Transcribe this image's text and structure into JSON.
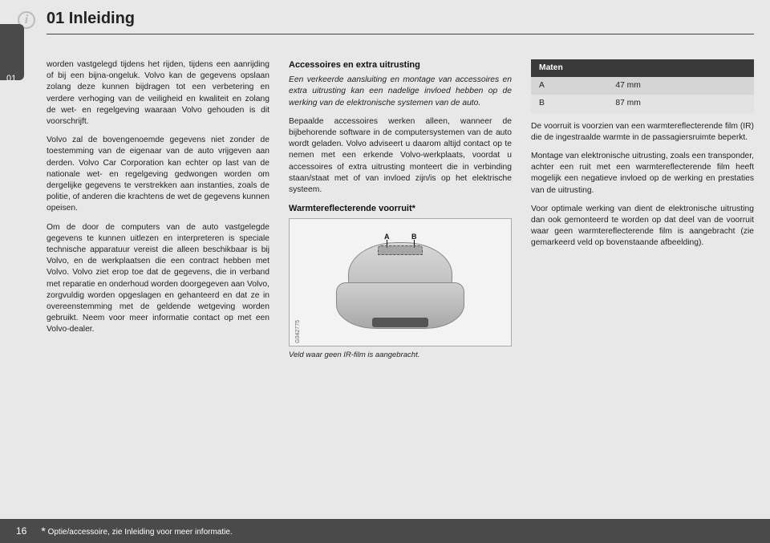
{
  "chapter": {
    "number": "01",
    "title": "01 Inleiding",
    "info_glyph": "i"
  },
  "col1": {
    "p1": "worden vastgelegd tijdens het rijden, tijdens een aanrijding of bij een bijna-ongeluk. Volvo kan de gegevens opslaan zolang deze kunnen bijdragen tot een verbetering en verdere verhoging van de veiligheid en kwaliteit en zolang de wet- en regelgeving waaraan Volvo gehouden is dit voorschrijft.",
    "p2": "Volvo zal de bovengenoemde gegevens niet zonder de toestemming van de eigenaar van de auto vrijgeven aan derden. Volvo Car Corporation kan echter op last van de nationale wet- en regelgeving gedwongen worden om dergelijke gegevens te verstrekken aan instanties, zoals de politie, of anderen die krachtens de wet de gegevens kunnen opeisen.",
    "p3": "Om de door de computers van de auto vastgelegde gegevens te kunnen uitlezen en interpreteren is speciale technische apparatuur vereist die alleen beschikbaar is bij Volvo, en de werkplaatsen die een contract hebben met Volvo. Volvo ziet erop toe dat de gegevens, die in verband met reparatie en onderhoud worden doorgegeven aan Volvo, zorgvuldig worden opgeslagen en gehanteerd en dat ze in overeenstemming met de geldende wetgeving worden gebruikt. Neem voor meer informatie contact op met een Volvo-dealer."
  },
  "col2": {
    "h1": "Accessoires en extra uitrusting",
    "p1": "Een verkeerde aansluiting en montage van accessoires en extra uitrusting kan een nadelige invloed hebben op de werking van de elektronische systemen van de auto.",
    "p2": "Bepaalde accessoires werken alleen, wanneer de bijbehorende software in de computersystemen van de auto wordt geladen. Volvo adviseert u daarom altijd contact op te nemen met een erkende Volvo-werkplaats, voordat u accessoires of extra uitrusting monteert die in verbinding staan/staat met of van invloed zijn/is op het elektrische systeem.",
    "h2": "Warmtereflecterende voorruit*",
    "figure": {
      "label_a": "A",
      "label_b": "B",
      "code": "G042775"
    },
    "caption": "Veld waar geen IR-film is aangebracht."
  },
  "col3": {
    "table": {
      "header": "Maten",
      "rows": [
        {
          "k": "A",
          "v": "47 mm"
        },
        {
          "k": "B",
          "v": "87 mm"
        }
      ]
    },
    "p1": "De voorruit is voorzien van een warmtereflecterende film (IR) die de ingestraalde warmte in de passagiersruimte beperkt.",
    "p2": "Montage van elektronische uitrusting, zoals een transponder, achter een ruit met een warmtereflecterende film heeft mogelijk een negatieve invloed op de werking en prestaties van de uitrusting.",
    "p3": "Voor optimale werking van dient de elektronische uitrusting dan ook gemonteerd te worden op dat deel van de voorruit waar geen warmtereflecterende film is aangebracht (zie gemarkeerd veld op bovenstaande afbeelding)."
  },
  "footer": {
    "page": "16",
    "star": "*",
    "note": "Optie/accessoire, zie Inleiding voor meer informatie."
  }
}
